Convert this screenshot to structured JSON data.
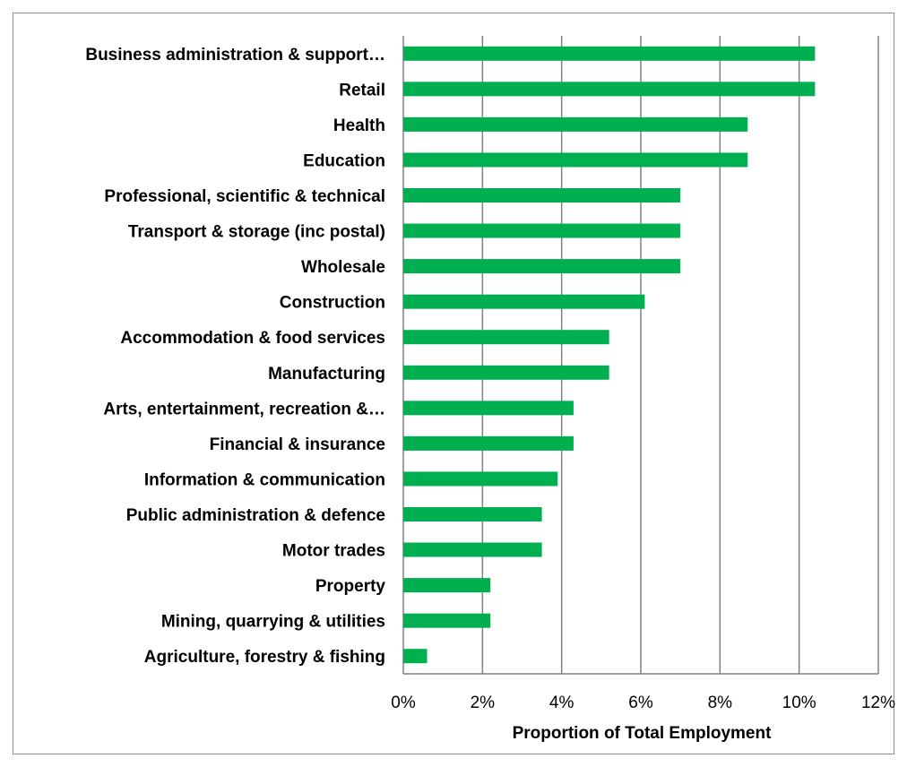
{
  "chart_data": {
    "type": "bar",
    "orientation": "horizontal",
    "categories": [
      "Business administration & support…",
      "Retail",
      "Health",
      "Education",
      "Professional, scientific & technical",
      "Transport & storage (inc postal)",
      "Wholesale",
      "Construction",
      "Accommodation & food services",
      "Manufacturing",
      "Arts, entertainment, recreation &…",
      "Financial & insurance",
      "Information & communication",
      "Public administration & defence",
      "Motor trades",
      "Property",
      "Mining, quarrying & utilities",
      "Agriculture, forestry & fishing"
    ],
    "values": [
      10.4,
      10.4,
      8.7,
      8.7,
      7.0,
      7.0,
      7.0,
      6.1,
      5.2,
      5.2,
      4.3,
      4.3,
      3.9,
      3.5,
      3.5,
      2.2,
      2.2,
      0.6
    ],
    "xlabel": "Proportion of Total Employment",
    "xlim": [
      0,
      12
    ],
    "xticks": [
      "0%",
      "2%",
      "4%",
      "6%",
      "8%",
      "10%",
      "12%"
    ],
    "grid": "vertical",
    "legend": "none",
    "bar_color": "#00b050",
    "gridline_color": "#808080"
  }
}
